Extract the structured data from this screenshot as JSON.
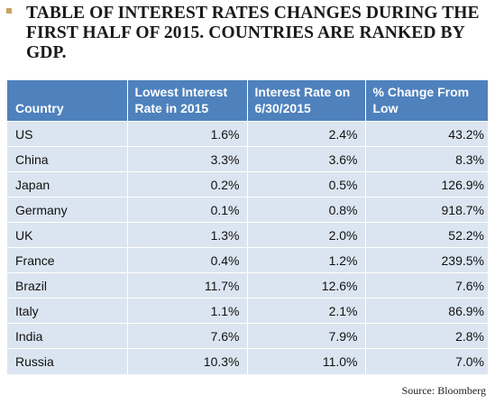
{
  "title": "TABLE OF INTEREST RATES CHANGES DURING THE FIRST HALF OF 2015. COUNTRIES ARE RANKED BY GDP.",
  "source": "Source: Bloomberg",
  "colors": {
    "header_bg": "#4f81bd",
    "row_bg": "#dbe5f1",
    "bullet": "#c9a461"
  },
  "chart_data": {
    "type": "table",
    "title": "TABLE OF INTEREST RATES CHANGES DURING THE FIRST HALF OF 2015. COUNTRIES ARE RANKED BY GDP.",
    "columns": [
      "Country",
      "Lowest Interest Rate in 2015",
      "Interest Rate on 6/30/2015",
      "% Change From Low"
    ],
    "rows": [
      [
        "US",
        "1.6%",
        "2.4%",
        "43.2%"
      ],
      [
        "China",
        "3.3%",
        "3.6%",
        "8.3%"
      ],
      [
        "Japan",
        "0.2%",
        "0.5%",
        "126.9%"
      ],
      [
        "Germany",
        "0.1%",
        "0.8%",
        "918.7%"
      ],
      [
        "UK",
        "1.3%",
        "2.0%",
        "52.2%"
      ],
      [
        "France",
        "0.4%",
        "1.2%",
        "239.5%"
      ],
      [
        "Brazil",
        "11.7%",
        "12.6%",
        "7.6%"
      ],
      [
        "Italy",
        "1.1%",
        "2.1%",
        "86.9%"
      ],
      [
        "India",
        "7.6%",
        "7.9%",
        "2.8%"
      ],
      [
        "Russia",
        "10.3%",
        "11.0%",
        "7.0%"
      ]
    ]
  }
}
